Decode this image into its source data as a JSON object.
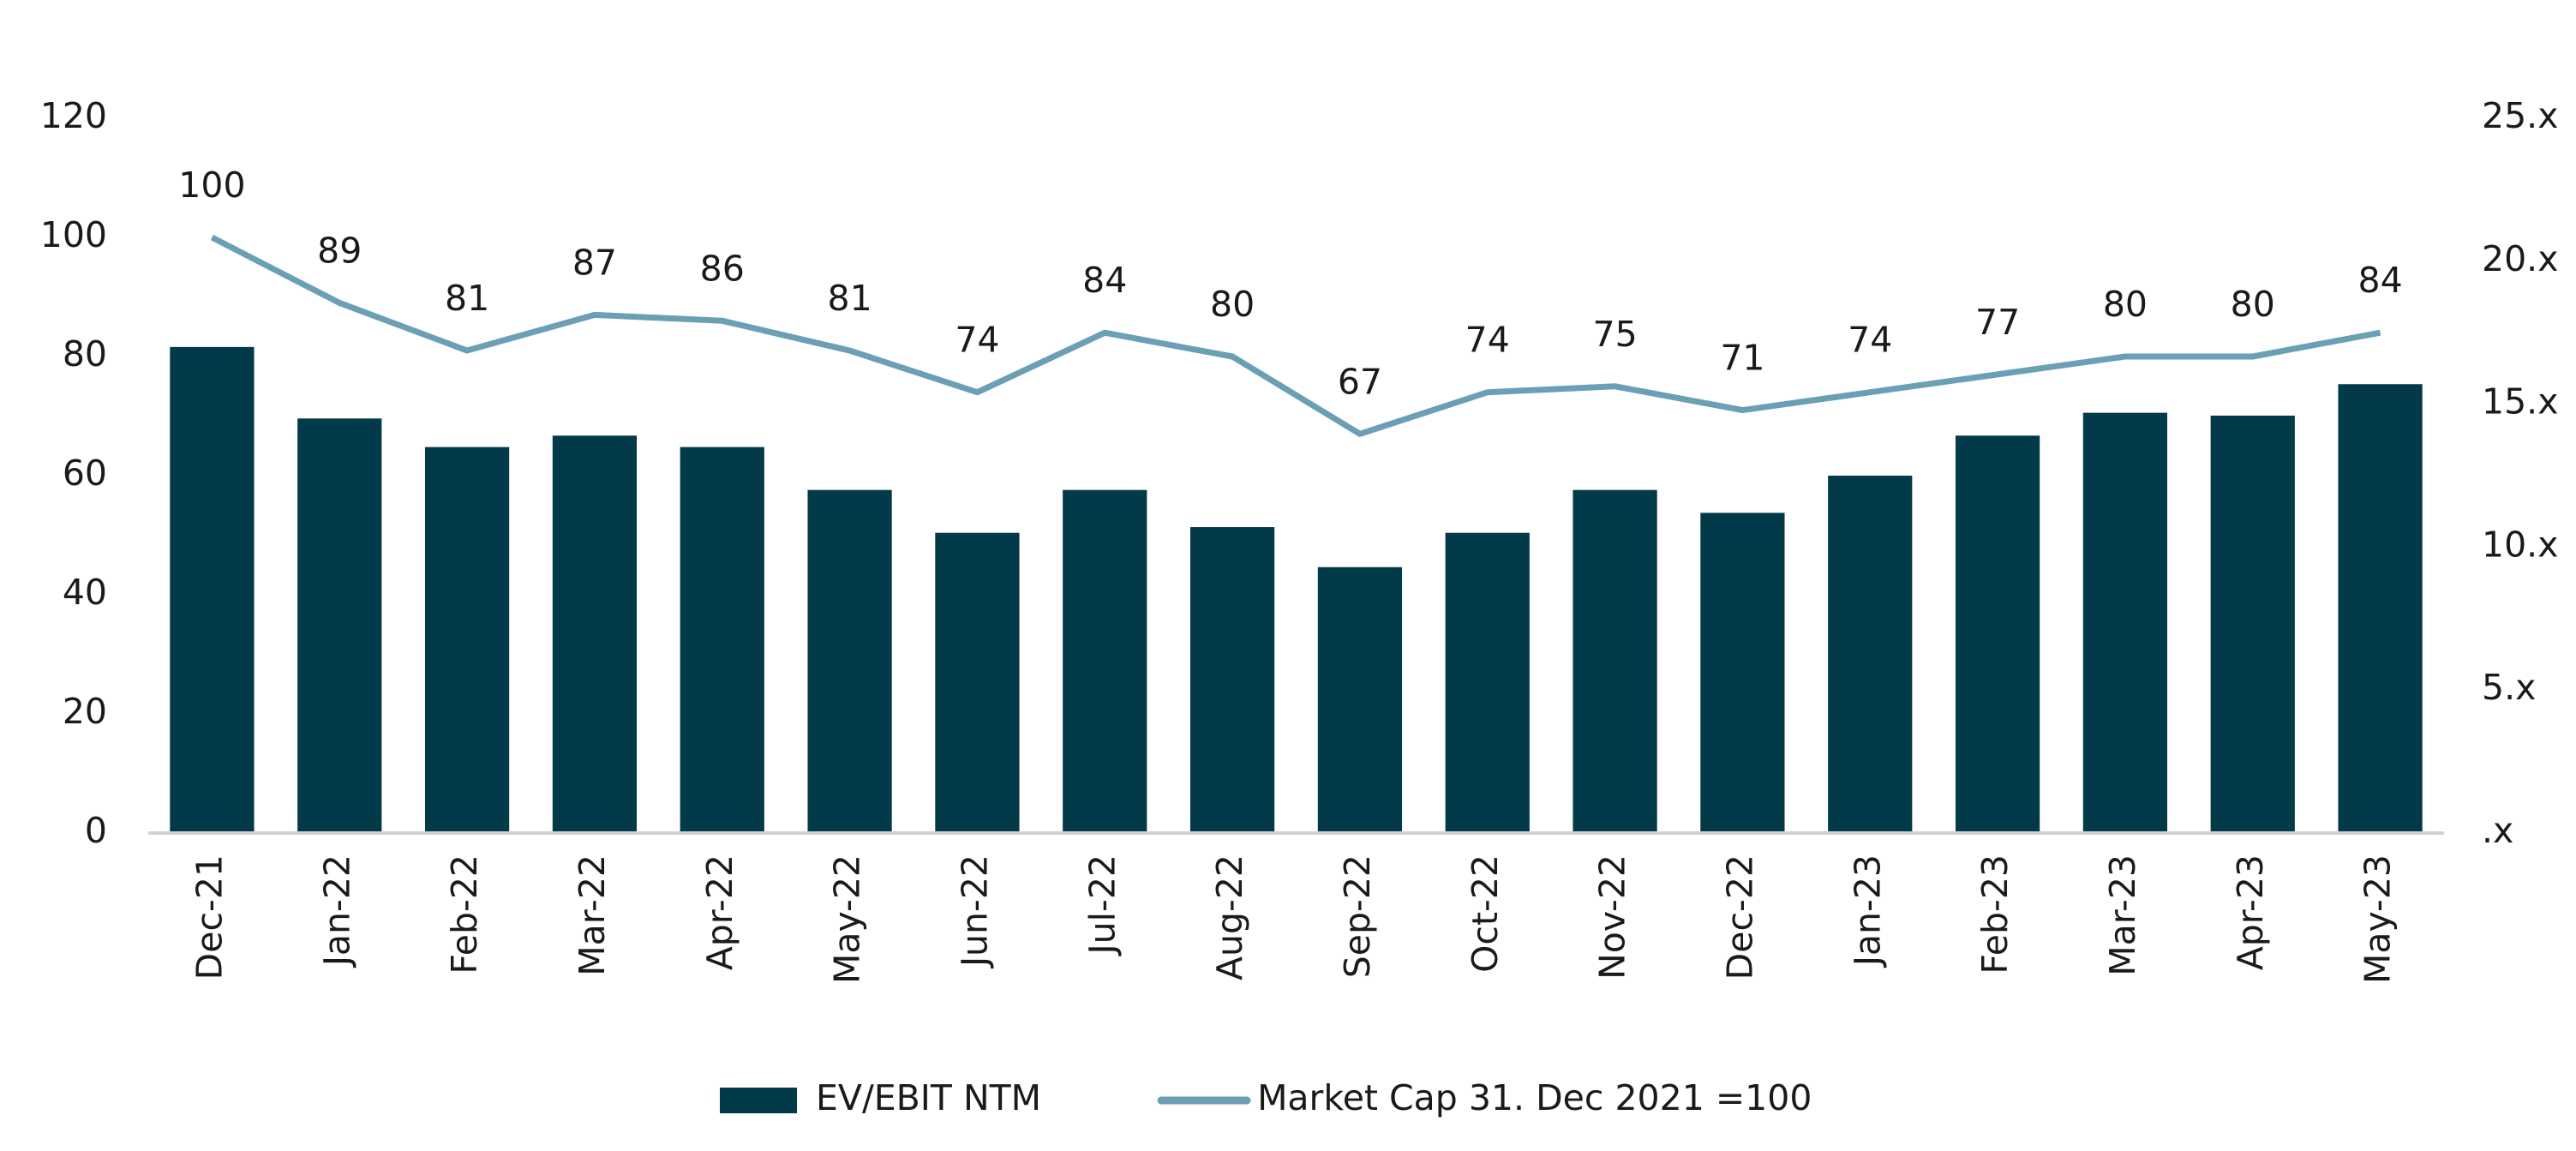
{
  "chart_data": {
    "type": "bar-line",
    "categories": [
      "Dec-21",
      "Jan-22",
      "Feb-22",
      "Mar-22",
      "Apr-22",
      "May-22",
      "Jun-22",
      "Jul-22",
      "Aug-22",
      "Sep-22",
      "Oct-22",
      "Nov-22",
      "Dec-22",
      "Jan-23",
      "Feb-23",
      "Mar-23",
      "Apr-23",
      "May-23"
    ],
    "series": [
      {
        "name": "EV/EBIT NTM",
        "type": "bar",
        "axis": "y2",
        "color": "#033a4a",
        "values": [
          17.0,
          14.5,
          13.5,
          13.9,
          13.5,
          12.0,
          10.5,
          12.0,
          10.7,
          9.3,
          10.5,
          12.0,
          11.2,
          12.5,
          13.9,
          14.7,
          14.6,
          15.7
        ]
      },
      {
        "name": "Market Cap 31. Dec 2021 =100",
        "type": "line",
        "color": "#6b9fb5",
        "values": [
          100,
          89,
          81,
          87,
          86,
          81,
          74,
          84,
          80,
          67,
          74,
          75,
          71,
          74,
          77,
          80,
          80,
          84
        ]
      }
    ],
    "ylim": [
      0,
      120
    ],
    "yticks": [
      0,
      20,
      40,
      60,
      80,
      100,
      120
    ],
    "y2lim": [
      0,
      25
    ],
    "y2ticks": [
      {
        "value": 0,
        "label": ".x"
      },
      {
        "value": 5,
        "label": "5.x"
      },
      {
        "value": 10,
        "label": "10.x"
      },
      {
        "value": 15,
        "label": "15.x"
      },
      {
        "value": 20,
        "label": "20.x"
      },
      {
        "value": 25,
        "label": "25.x"
      }
    ],
    "legend": "bottom"
  }
}
